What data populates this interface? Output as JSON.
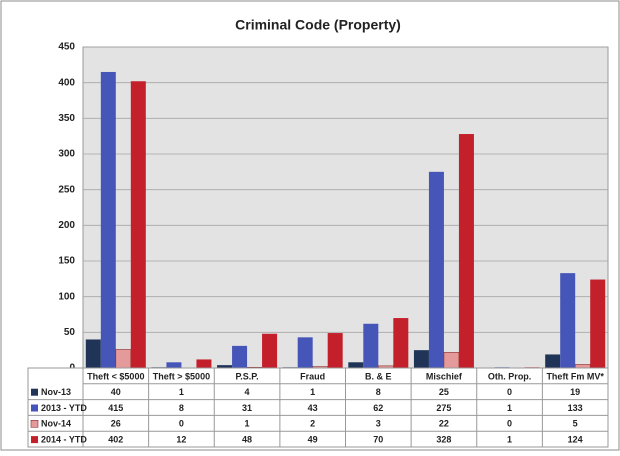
{
  "chart_data": {
    "type": "bar",
    "title": "Criminal Code (Property)",
    "categories": [
      "Theft < $5000",
      "Theft > $5000",
      "P.S.P.",
      "Fraud",
      "B. & E",
      "Mischief",
      "Oth. Prop.",
      "Theft Fm MV*"
    ],
    "series": [
      {
        "name": "Nov-13",
        "color": "#1f3457",
        "values": [
          40,
          1,
          4,
          1,
          8,
          25,
          0,
          19
        ]
      },
      {
        "name": "2013 - YTD",
        "color": "#4656b8",
        "values": [
          415,
          8,
          31,
          43,
          62,
          275,
          1,
          133
        ]
      },
      {
        "name": "Nov-14",
        "color": "#e49a9a",
        "values": [
          26,
          0,
          1,
          2,
          3,
          22,
          0,
          5
        ]
      },
      {
        "name": "2014 - YTD",
        "color": "#c4202c",
        "values": [
          402,
          12,
          48,
          49,
          70,
          328,
          1,
          124
        ]
      }
    ],
    "ylim": [
      0,
      450
    ],
    "yticks": [
      0,
      50,
      100,
      150,
      200,
      250,
      300,
      350,
      400,
      450
    ],
    "grid": true
  }
}
